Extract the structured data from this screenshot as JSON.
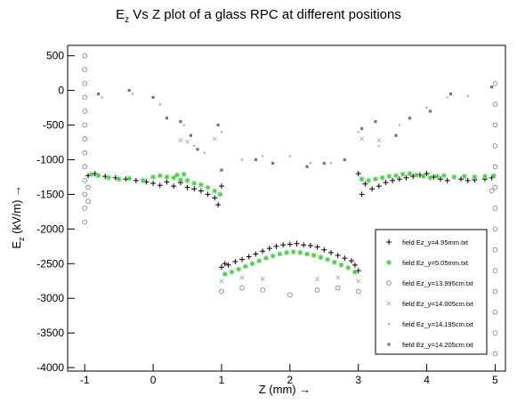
{
  "chart_data": {
    "type": "scatter",
    "title": {
      "prefix": "E",
      "sub": "z",
      "rest": " Vs Z plot of a glass RPC at different positions"
    },
    "xlabel": "Z (mm) →",
    "ylabel": {
      "prefix": "E",
      "sub": "z",
      "rest": " (kV/m) →"
    },
    "xlim": [
      -1.25,
      5.15
    ],
    "ylim": [
      -4050,
      650
    ],
    "x_ticks": [
      -1,
      0,
      1,
      2,
      3,
      4,
      5
    ],
    "y_ticks": [
      500,
      0,
      -500,
      -1000,
      -1500,
      -2000,
      -2500,
      -3000,
      -3500,
      -4000
    ],
    "legend_position": "lower-right",
    "series": [
      {
        "name": "field Ez_y=4.95mm.txt",
        "marker": "plus",
        "color": "#000000",
        "points": [
          [
            -0.95,
            -1230
          ],
          [
            -0.85,
            -1200
          ],
          [
            -0.7,
            -1240
          ],
          [
            -0.55,
            -1260
          ],
          [
            -0.4,
            -1280
          ],
          [
            -0.25,
            -1300
          ],
          [
            -0.1,
            -1320
          ],
          [
            0.0,
            -1340
          ],
          [
            0.1,
            -1370
          ],
          [
            0.2,
            -1320
          ],
          [
            0.3,
            -1380
          ],
          [
            0.4,
            -1330
          ],
          [
            0.5,
            -1400
          ],
          [
            0.6,
            -1420
          ],
          [
            0.7,
            -1450
          ],
          [
            0.8,
            -1500
          ],
          [
            0.9,
            -1550
          ],
          [
            0.95,
            -1650
          ],
          [
            1.0,
            -1380
          ],
          [
            1.0,
            -2550
          ],
          [
            1.05,
            -2500
          ],
          [
            1.1,
            -2520
          ],
          [
            1.2,
            -2470
          ],
          [
            1.3,
            -2440
          ],
          [
            1.4,
            -2400
          ],
          [
            1.5,
            -2360
          ],
          [
            1.6,
            -2320
          ],
          [
            1.7,
            -2280
          ],
          [
            1.8,
            -2250
          ],
          [
            1.9,
            -2230
          ],
          [
            2.0,
            -2220
          ],
          [
            2.1,
            -2210
          ],
          [
            2.2,
            -2230
          ],
          [
            2.3,
            -2240
          ],
          [
            2.4,
            -2260
          ],
          [
            2.5,
            -2300
          ],
          [
            2.6,
            -2340
          ],
          [
            2.7,
            -2380
          ],
          [
            2.8,
            -2420
          ],
          [
            2.9,
            -2460
          ],
          [
            2.95,
            -2520
          ],
          [
            3.0,
            -2600
          ],
          [
            3.0,
            -1200
          ],
          [
            3.05,
            -1500
          ],
          [
            3.1,
            -1350
          ],
          [
            3.2,
            -1420
          ],
          [
            3.3,
            -1380
          ],
          [
            3.4,
            -1330
          ],
          [
            3.5,
            -1300
          ],
          [
            3.6,
            -1280
          ],
          [
            3.7,
            -1260
          ],
          [
            3.8,
            -1240
          ],
          [
            3.9,
            -1220
          ],
          [
            4.0,
            -1200
          ],
          [
            4.1,
            -1250
          ],
          [
            4.2,
            -1280
          ],
          [
            4.3,
            -1300
          ],
          [
            4.5,
            -1280
          ],
          [
            4.6,
            -1300
          ],
          [
            4.7,
            -1290
          ],
          [
            4.85,
            -1280
          ],
          [
            4.95,
            -1260
          ]
        ]
      },
      {
        "name": "field Ez_y=5.05mm.txt",
        "marker": "star",
        "color": "#44cc44",
        "points": [
          [
            -0.9,
            -1210
          ],
          [
            -0.8,
            -1230
          ],
          [
            -0.65,
            -1260
          ],
          [
            -0.5,
            -1280
          ],
          [
            -0.35,
            -1270
          ],
          [
            -0.15,
            -1300
          ],
          [
            0.0,
            -1250
          ],
          [
            0.1,
            -1230
          ],
          [
            0.2,
            -1250
          ],
          [
            0.3,
            -1260
          ],
          [
            0.4,
            -1290
          ],
          [
            0.5,
            -1300
          ],
          [
            0.6,
            -1340
          ],
          [
            0.7,
            -1360
          ],
          [
            0.8,
            -1400
          ],
          [
            0.9,
            -1450
          ],
          [
            0.98,
            -1500
          ],
          [
            0.35,
            -1220
          ],
          [
            0.45,
            -1210
          ],
          [
            1.05,
            -2650
          ],
          [
            1.15,
            -2620
          ],
          [
            1.25,
            -2580
          ],
          [
            1.35,
            -2540
          ],
          [
            1.45,
            -2500
          ],
          [
            1.55,
            -2460
          ],
          [
            1.65,
            -2420
          ],
          [
            1.75,
            -2390
          ],
          [
            1.85,
            -2360
          ],
          [
            1.95,
            -2340
          ],
          [
            2.05,
            -2330
          ],
          [
            2.15,
            -2340
          ],
          [
            2.25,
            -2360
          ],
          [
            2.35,
            -2380
          ],
          [
            2.45,
            -2410
          ],
          [
            2.55,
            -2440
          ],
          [
            2.65,
            -2480
          ],
          [
            2.75,
            -2520
          ],
          [
            2.85,
            -2560
          ],
          [
            2.95,
            -2620
          ],
          [
            3.05,
            -1280
          ],
          [
            3.15,
            -1300
          ],
          [
            3.25,
            -1280
          ],
          [
            3.35,
            -1260
          ],
          [
            3.45,
            -1240
          ],
          [
            3.55,
            -1230
          ],
          [
            3.65,
            -1210
          ],
          [
            3.75,
            -1200
          ],
          [
            3.85,
            -1220
          ],
          [
            3.95,
            -1240
          ],
          [
            4.05,
            -1260
          ],
          [
            4.15,
            -1240
          ],
          [
            4.25,
            -1230
          ],
          [
            4.4,
            -1250
          ],
          [
            4.55,
            -1240
          ],
          [
            4.7,
            -1250
          ],
          [
            4.85,
            -1240
          ],
          [
            4.98,
            -1230
          ]
        ]
      },
      {
        "name": "field Ez_y=13.995cm.txt",
        "marker": "circle",
        "color": "#888888",
        "points": [
          [
            -1.0,
            500
          ],
          [
            -1.0,
            300
          ],
          [
            -1.0,
            100
          ],
          [
            -1.0,
            -100
          ],
          [
            -1.0,
            -300
          ],
          [
            -1.0,
            -500
          ],
          [
            -1.0,
            -700
          ],
          [
            -1.0,
            -900
          ],
          [
            -1.0,
            -1100
          ],
          [
            -1.0,
            -1300
          ],
          [
            -1.0,
            -1500
          ],
          [
            -1.0,
            -1700
          ],
          [
            -1.0,
            -1900
          ],
          [
            -0.95,
            -1400
          ],
          [
            -0.95,
            -1600
          ],
          [
            1.0,
            -2900
          ],
          [
            1.3,
            -2850
          ],
          [
            1.6,
            -2880
          ],
          [
            2.0,
            -2950
          ],
          [
            2.4,
            -2880
          ],
          [
            2.7,
            -2850
          ],
          [
            3.0,
            -2900
          ],
          [
            5.0,
            100
          ],
          [
            5.0,
            -200
          ],
          [
            5.0,
            -500
          ],
          [
            5.0,
            -800
          ],
          [
            5.0,
            -1100
          ],
          [
            5.0,
            -1400
          ],
          [
            5.0,
            -1700
          ],
          [
            5.0,
            -2000
          ],
          [
            5.0,
            -2300
          ],
          [
            5.0,
            -2600
          ],
          [
            5.0,
            -2900
          ],
          [
            5.0,
            -3200
          ],
          [
            5.0,
            -3500
          ],
          [
            5.0,
            -3800
          ],
          [
            4.95,
            -1450
          ]
        ]
      },
      {
        "name": "field Ez_y=14.005cm.txt",
        "marker": "cross",
        "color": "#aaaaaa",
        "points": [
          [
            0.4,
            -720
          ],
          [
            0.5,
            -740
          ],
          [
            0.9,
            -700
          ],
          [
            1.0,
            -2750
          ],
          [
            1.3,
            -2700
          ],
          [
            1.6,
            -2720
          ],
          [
            2.4,
            -2720
          ],
          [
            2.7,
            -2700
          ],
          [
            3.0,
            -2750
          ],
          [
            3.05,
            -700
          ],
          [
            3.3,
            -720
          ]
        ]
      },
      {
        "name": "field Ez_y=14.195cm.txt",
        "marker": "dot",
        "color": "#99aabb",
        "points": [
          [
            -0.75,
            -100
          ],
          [
            -0.3,
            -50
          ],
          [
            0.1,
            -200
          ],
          [
            0.45,
            -500
          ],
          [
            0.6,
            -800
          ],
          [
            0.75,
            -900
          ],
          [
            1.0,
            -600
          ],
          [
            1.3,
            -1000
          ],
          [
            1.6,
            -950
          ],
          [
            2.0,
            -950
          ],
          [
            2.3,
            -1050
          ],
          [
            2.6,
            -1050
          ],
          [
            3.0,
            -600
          ],
          [
            3.3,
            -800
          ],
          [
            3.6,
            -500
          ],
          [
            4.0,
            -250
          ],
          [
            4.3,
            -100
          ],
          [
            4.6,
            -80
          ]
        ]
      },
      {
        "name": "field Ez_y=14.205cm.txt",
        "marker": "square",
        "color": "#667788",
        "points": [
          [
            -0.8,
            -50
          ],
          [
            -0.35,
            0
          ],
          [
            0.0,
            -100
          ],
          [
            0.2,
            -400
          ],
          [
            0.4,
            -450
          ],
          [
            0.55,
            -650
          ],
          [
            0.65,
            -850
          ],
          [
            0.95,
            -500
          ],
          [
            1.0,
            -1150
          ],
          [
            1.5,
            -1000
          ],
          [
            1.75,
            -1050
          ],
          [
            2.25,
            -1100
          ],
          [
            2.5,
            -1050
          ],
          [
            2.8,
            -1000
          ],
          [
            3.05,
            -550
          ],
          [
            3.25,
            -450
          ],
          [
            3.55,
            -650
          ],
          [
            3.75,
            -400
          ],
          [
            4.05,
            -300
          ],
          [
            4.35,
            -50
          ],
          [
            4.95,
            50
          ]
        ]
      }
    ]
  }
}
